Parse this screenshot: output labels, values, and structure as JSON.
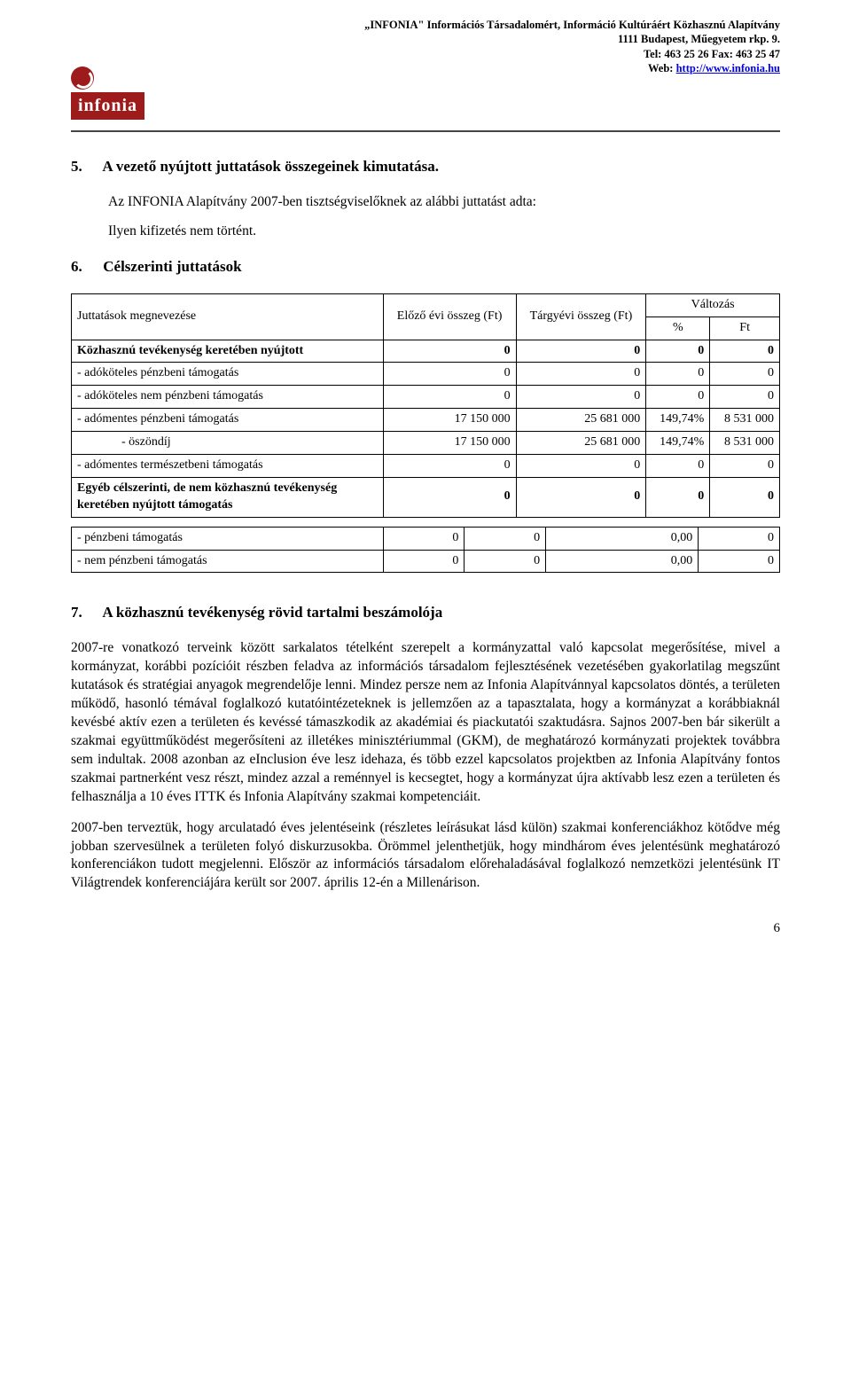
{
  "header": {
    "line1": "„INFONIA\" Információs Társadalomért, Információ Kultúráért Közhasznú Alapítvány",
    "line2": "1111 Budapest, Műegyetem rkp. 9.",
    "line3": "Tel: 463 25 26 Fax: 463 25 47",
    "web_label": "Web: ",
    "web_url": "http://www.infonia.hu"
  },
  "logo_text": "infonia",
  "section5": {
    "num": "5.",
    "title": "A vezető nyújtott juttatások összegeinek kimutatása.",
    "p1": "Az INFONIA Alapítvány 2007-ben tisztségviselőknek az alábbi juttatást adta:",
    "p2": "Ilyen kifizetés nem történt."
  },
  "section6": {
    "num": "6.",
    "title": "Célszerinti juttatások",
    "table": {
      "header_row1_col1": "Juttatások megnevezése",
      "header_row1_col2": "Előző évi összeg (Ft)",
      "header_row1_col3": "Tárgyévi összeg (Ft)",
      "header_row1_col4": "Változás",
      "header_row2_col4a": "%",
      "header_row2_col4b": "Ft",
      "rows": [
        {
          "label": "Közhasznú tevékenység keretében nyújtott",
          "c1": "0",
          "c2": "0",
          "c3": "0",
          "c4": "0",
          "bold": true
        },
        {
          "label": "- adóköteles pénzbeni támogatás",
          "c1": "0",
          "c2": "0",
          "c3": "0",
          "c4": "0"
        },
        {
          "label": "- adóköteles nem pénzbeni támogatás",
          "c1": "0",
          "c2": "0",
          "c3": "0",
          "c4": "0"
        },
        {
          "label": "- adómentes pénzbeni támogatás",
          "c1": "17 150 000",
          "c2": "25 681 000",
          "c3": "149,74%",
          "c4": "8 531 000"
        },
        {
          "label": "- öszöndíj",
          "c1": "17 150 000",
          "c2": "25 681 000",
          "c3": "149,74%",
          "c4": "8 531 000",
          "indent2": true
        },
        {
          "label": "- adómentes természetbeni támogatás",
          "c1": "0",
          "c2": "0",
          "c3": "0",
          "c4": "0"
        },
        {
          "label": "Egyéb célszerinti, de nem közhasznú tevékenység keretében nyújtott támogatás",
          "c1": "0",
          "c2": "0",
          "c3": "0",
          "c4": "0",
          "bold": true
        }
      ],
      "rows2": [
        {
          "label": "- pénzbeni támogatás",
          "c1": "0",
          "c2": "0",
          "c3": "0,00",
          "c4": "0"
        },
        {
          "label": "- nem pénzbeni támogatás",
          "c1": "0",
          "c2": "0",
          "c3": "0,00",
          "c4": "0"
        }
      ]
    }
  },
  "section7": {
    "num": "7.",
    "title": "A közhasznú tevékenység rövid tartalmi beszámolója",
    "p1": "2007-re vonatkozó terveink között sarkalatos tételként szerepelt a kormányzattal való kapcsolat megerősítése, mivel a kormányzat, korábbi pozícióit részben feladva az információs társadalom fejlesztésének vezetésében gyakorlatilag megszűnt kutatások és stratégiai anyagok megrendelője lenni. Mindez persze nem az Infonia Alapítvánnyal kapcsolatos döntés, a területen működő, hasonló témával foglalkozó kutatóintézeteknek is jellemzően az a tapasztalata, hogy a kormányzat a korábbiaknál kevésbé aktív ezen a területen és kevéssé támaszkodik az akadémiai és piackutatói szaktudásra. Sajnos 2007-ben bár sikerült a szakmai együttműködést megerősíteni az illetékes minisztériummal (GKM), de meghatározó kormányzati projektek továbbra sem indultak. 2008 azonban az eInclusion éve lesz idehaza, és több ezzel kapcsolatos projektben az Infonia Alapítvány fontos szakmai partnerként vesz részt, mindez azzal a reménnyel is kecsegtet, hogy a kormányzat újra aktívabb lesz ezen a területen és felhasználja a 10 éves ITTK és Infonia Alapítvány szakmai kompetenciáit.",
    "p2": "2007-ben terveztük, hogy arculatadó éves jelentéseink (részletes leírásukat lásd külön) szakmai konferenciákhoz kötődve még jobban szervesülnek a területen folyó diskurzusokba. Örömmel jelenthetjük, hogy mindhárom éves jelentésünk meghatározó konferenciákon tudott megjelenni. Először az információs társadalom előrehaladásával foglalkozó nemzetközi jelentésünk IT Világtrendek konferenciájára került sor 2007. április 12-én a Millenárison."
  },
  "page_number": "6"
}
